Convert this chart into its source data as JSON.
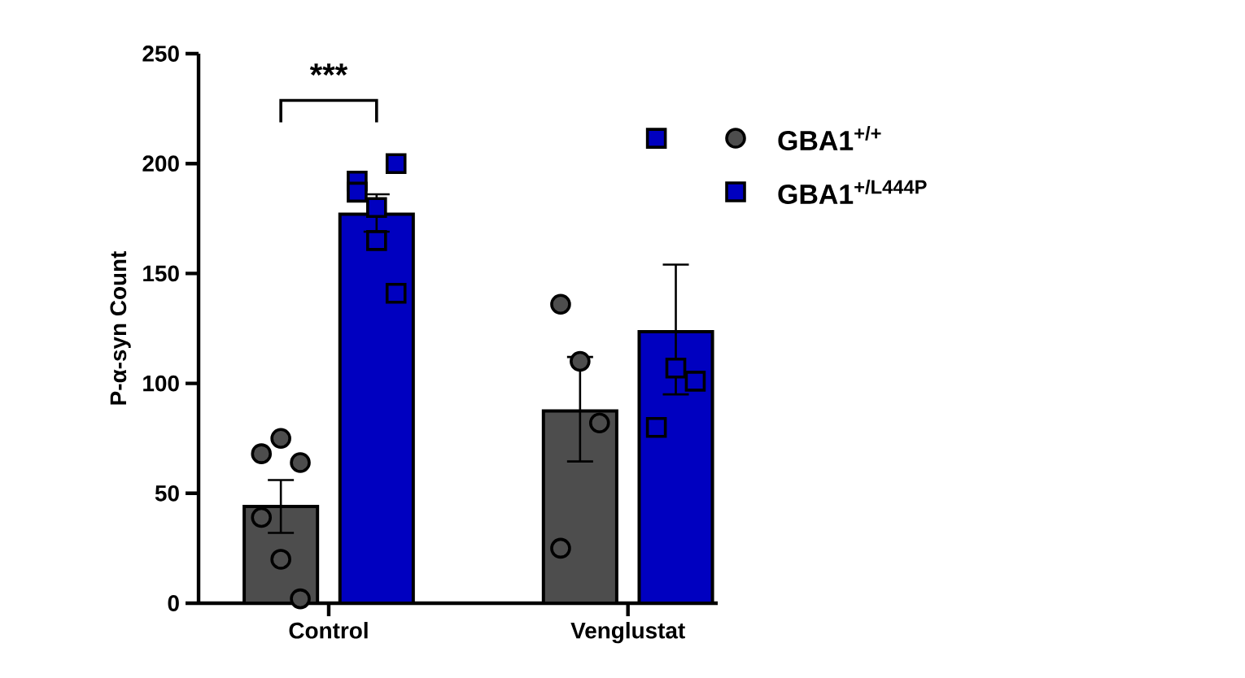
{
  "chart_data": {
    "type": "bar",
    "ylabel": "P-α-syn Count",
    "categories": [
      "Control",
      "Venglustat"
    ],
    "ylim": [
      0,
      250
    ],
    "yticks": [
      0,
      50,
      100,
      150,
      200,
      250
    ],
    "legend": "right",
    "grid": false,
    "annotations": [
      "***"
    ],
    "series": [
      {
        "name": "GBA1$^{+/+}$",
        "color": "#4d4d4d",
        "values": [
          44,
          87.5
        ],
        "errors": [
          [
            32,
            56
          ],
          [
            64.5,
            112
          ]
        ]
      },
      {
        "name": "GBA1$^{+/L444P}$",
        "color": "#0000c0",
        "values": [
          177,
          123.5
        ],
        "errors": [
          [
            169,
            186
          ],
          [
            95,
            154
          ]
        ]
      },
      {
        "type": "scatter",
        "marker": "circle",
        "color": "#4d4d4d",
        "x": [
          "Control",
          "Control",
          "Control",
          "Control",
          "Control",
          "Control",
          "Venglustat",
          "Venglustat",
          "Venglustat",
          "Venglustat"
        ],
        "values": [
          68,
          75,
          64,
          39,
          20,
          2,
          136,
          110,
          82,
          25
        ]
      },
      {
        "type": "scatter",
        "marker": "square",
        "color": "#0000c0",
        "x": [
          "Control",
          "Control",
          "Control",
          "Control",
          "Control",
          "Control",
          "Venglustat",
          "Venglustat",
          "Venglustat",
          "Venglustat"
        ],
        "values": [
          192,
          180,
          200,
          187,
          165,
          141,
          211.5,
          107,
          101,
          80
        ]
      }
    ]
  }
}
